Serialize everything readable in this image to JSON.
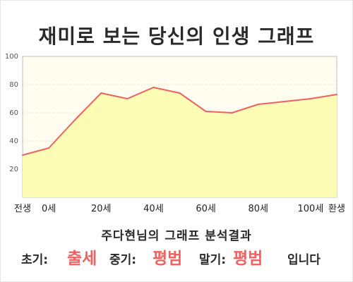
{
  "title": "재미로 보는 당신의 인생 그래프",
  "subtitle": "주다현님의 그래프 분석결과",
  "result": {
    "early_label": "초기:",
    "early_value": "출세",
    "mid_label": "중기:",
    "mid_value": "평범",
    "late_label": "말기:",
    "late_value": "평범",
    "ending": "입니다"
  },
  "colors": {
    "line": "#f06161",
    "fill": "#fefdb6",
    "plot_bg": "#fffdef",
    "grid": "#d6d6b8"
  },
  "chart_data": {
    "type": "area",
    "title": "재미로 보는 당신의 인생 그래프",
    "ylim": [
      0,
      100
    ],
    "yticks": [
      20,
      40,
      60,
      80,
      100
    ],
    "grid": true,
    "x_tick_labels": [
      "전생",
      "0세",
      "20세",
      "40세",
      "60세",
      "80세",
      "100세",
      "환생"
    ],
    "series": [
      {
        "x": [
          -10,
          0,
          10,
          20,
          30,
          40,
          50,
          60,
          70,
          80,
          90,
          100,
          110
        ],
        "values": [
          30,
          35,
          55,
          74,
          70,
          78,
          74,
          61,
          60,
          66,
          68,
          70,
          73
        ]
      }
    ]
  }
}
